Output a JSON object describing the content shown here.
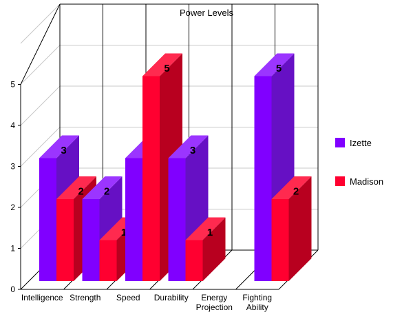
{
  "chart_data": {
    "type": "bar",
    "subtype": "3d-clustered",
    "title": "Power Levels",
    "xlabel": "",
    "ylabel": "",
    "ylim": [
      0,
      6
    ],
    "yticks": [
      "0",
      "1",
      "2",
      "3",
      "4",
      "5"
    ],
    "categories": [
      [
        "Intelligence"
      ],
      [
        "Strength"
      ],
      [
        "Speed"
      ],
      [
        "Durability"
      ],
      [
        "Energy",
        "Projection"
      ],
      [
        "Fighting",
        "Ability"
      ]
    ],
    "series": [
      {
        "name": "Izette",
        "values": [
          3,
          2,
          3,
          3,
          null,
          5
        ],
        "colors": {
          "front": "#8000ff",
          "side": "#6610c4",
          "top": "#9b35ff"
        }
      },
      {
        "name": "Madison",
        "values": [
          2,
          1,
          5,
          1,
          null,
          2
        ],
        "colors": {
          "front": "#ff0030",
          "side": "#b8001f",
          "top": "#ff2a4f"
        }
      }
    ],
    "grid": true,
    "legend": "right"
  }
}
